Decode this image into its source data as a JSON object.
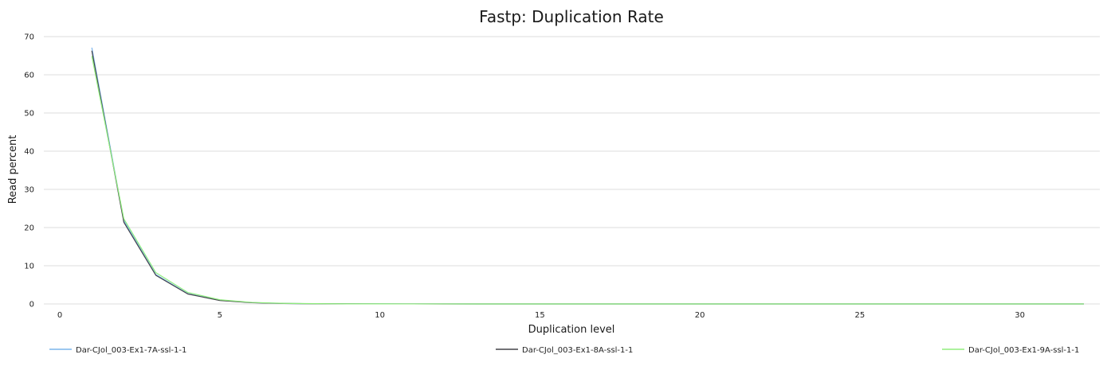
{
  "chart_data": {
    "type": "line",
    "title": "Fastp: Duplication Rate",
    "xlabel": "Duplication level",
    "ylabel": "Read percent",
    "xlim": [
      -0.5,
      32.5
    ],
    "ylim": [
      0,
      70
    ],
    "x_ticks": [
      "0",
      "5",
      "10",
      "15",
      "20",
      "25",
      "30"
    ],
    "y_ticks": [
      "0",
      "10",
      "20",
      "30",
      "40",
      "50",
      "60",
      "70"
    ],
    "grid": "horizontal",
    "legend_position": "bottom",
    "x": [
      1,
      2,
      3,
      4,
      5,
      6,
      7,
      8,
      9,
      10,
      11,
      12,
      13,
      14,
      15,
      16,
      17,
      18,
      19,
      20,
      21,
      22,
      23,
      24,
      25,
      26,
      27,
      28,
      29,
      30,
      31,
      32
    ],
    "series": [
      {
        "name": "Dar-CJol_003-Ex1-7A-ssl-1-1",
        "color": "#7cb5ec",
        "values": [
          67.1,
          21.8,
          7.7,
          2.7,
          0.95,
          0.35,
          0.13,
          0.06,
          0.03,
          0.02,
          0.01,
          0.01,
          0,
          0,
          0,
          0,
          0,
          0,
          0,
          0,
          0,
          0,
          0,
          0,
          0,
          0,
          0,
          0,
          0,
          0,
          0,
          0
        ]
      },
      {
        "name": "Dar-CJol_003-Ex1-8A-ssl-1-1",
        "color": "#434348",
        "values": [
          66.3,
          21.4,
          7.5,
          2.6,
          0.9,
          0.33,
          0.12,
          0.05,
          0.02,
          0.01,
          0.01,
          0,
          0,
          0,
          0,
          0,
          0,
          0,
          0,
          0,
          0,
          0,
          0,
          0,
          0,
          0,
          0,
          0,
          0,
          0,
          0,
          0
        ]
      },
      {
        "name": "Dar-CJol_003-Ex1-9A-ssl-1-1",
        "color": "#90ed7d",
        "values": [
          64.9,
          22.3,
          8.2,
          3.0,
          1.1,
          0.4,
          0.15,
          0.07,
          0.03,
          0.02,
          0.01,
          0.01,
          0,
          0,
          0,
          0,
          0,
          0,
          0,
          0,
          0,
          0,
          0,
          0,
          0,
          0,
          0,
          0,
          0,
          0,
          0,
          0
        ]
      }
    ]
  }
}
